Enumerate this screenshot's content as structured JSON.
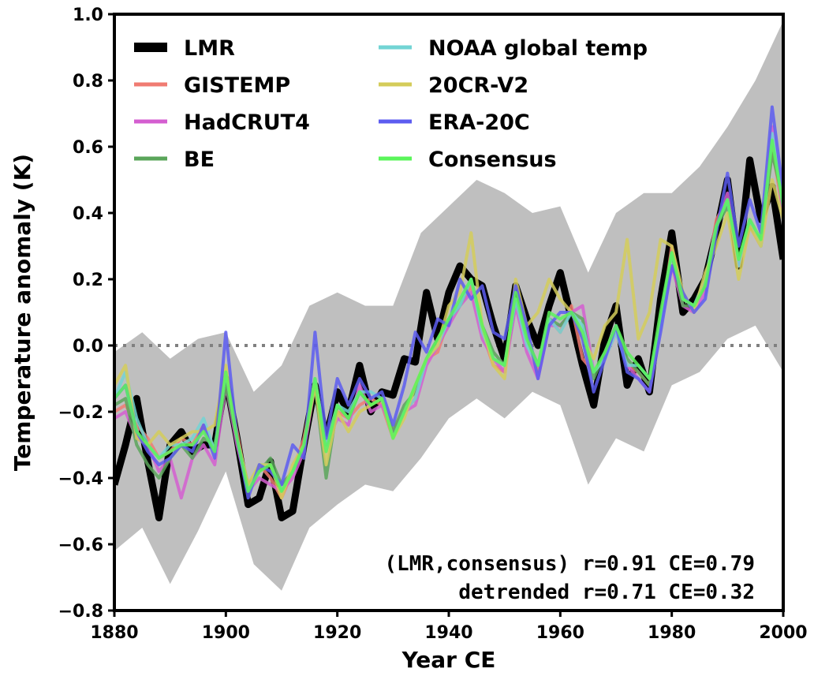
{
  "chart_data": {
    "type": "line",
    "xlabel": "Year CE",
    "ylabel": "Temperature anomaly (K)",
    "xlim": [
      1880,
      2000
    ],
    "ylim": [
      -0.8,
      1.0
    ],
    "x_ticks": [
      "1880",
      "1900",
      "1920",
      "1940",
      "1960",
      "1980",
      "2000"
    ],
    "y_ticks": [
      "−0.8",
      "−0.6",
      "−0.4",
      "−0.2",
      "0.0",
      "0.2",
      "0.4",
      "0.6",
      "0.8",
      "1.0"
    ],
    "zero_line": {
      "y": 0.0,
      "style": "dotted",
      "color": "#808080"
    },
    "legend_position": "upper-left",
    "uncertainty_band": {
      "series": "LMR",
      "color": "#bfbfbf",
      "x": [
        1880,
        1885,
        1890,
        1895,
        1900,
        1905,
        1910,
        1915,
        1920,
        1925,
        1930,
        1935,
        1940,
        1945,
        1950,
        1955,
        1960,
        1965,
        1970,
        1975,
        1980,
        1985,
        1990,
        1995,
        2000
      ],
      "lower": [
        -0.62,
        -0.55,
        -0.72,
        -0.56,
        -0.38,
        -0.66,
        -0.74,
        -0.55,
        -0.48,
        -0.42,
        -0.44,
        -0.34,
        -0.22,
        -0.16,
        -0.22,
        -0.14,
        -0.18,
        -0.42,
        -0.28,
        -0.32,
        -0.12,
        -0.08,
        0.02,
        0.06,
        -0.08
      ],
      "upper": [
        -0.02,
        0.04,
        -0.04,
        0.02,
        0.04,
        -0.14,
        -0.06,
        0.12,
        0.16,
        0.12,
        0.12,
        0.34,
        0.42,
        0.5,
        0.46,
        0.4,
        0.42,
        0.22,
        0.4,
        0.46,
        0.46,
        0.54,
        0.66,
        0.8,
        0.98
      ]
    },
    "x": [
      1880,
      1882,
      1884,
      1886,
      1888,
      1890,
      1892,
      1894,
      1896,
      1898,
      1900,
      1902,
      1904,
      1906,
      1908,
      1910,
      1912,
      1914,
      1916,
      1918,
      1920,
      1922,
      1924,
      1926,
      1928,
      1930,
      1932,
      1934,
      1936,
      1938,
      1940,
      1942,
      1944,
      1946,
      1948,
      1950,
      1952,
      1954,
      1956,
      1958,
      1960,
      1962,
      1964,
      1966,
      1968,
      1970,
      1972,
      1974,
      1976,
      1978,
      1980,
      1982,
      1984,
      1986,
      1988,
      1990,
      1992,
      1994,
      1996,
      1998,
      2000
    ],
    "series": [
      {
        "name": "LMR",
        "color": "#000000",
        "values": [
          -0.42,
          -0.3,
          -0.16,
          -0.35,
          -0.52,
          -0.3,
          -0.26,
          -0.32,
          -0.3,
          -0.3,
          -0.1,
          -0.28,
          -0.48,
          -0.46,
          -0.35,
          -0.52,
          -0.5,
          -0.3,
          -0.12,
          -0.28,
          -0.14,
          -0.2,
          -0.06,
          -0.2,
          -0.14,
          -0.15,
          -0.04,
          -0.05,
          0.16,
          0.02,
          0.16,
          0.24,
          0.2,
          0.18,
          0.06,
          -0.04,
          0.18,
          0.08,
          0.0,
          0.12,
          0.22,
          0.08,
          -0.06,
          -0.18,
          0.02,
          0.12,
          -0.12,
          -0.04,
          -0.14,
          0.14,
          0.34,
          0.1,
          0.14,
          0.2,
          0.34,
          0.5,
          0.24,
          0.56,
          0.38,
          0.48,
          0.26
        ]
      },
      {
        "name": "GISTEMP",
        "color": "#f07b72",
        "values": [
          -0.2,
          -0.18,
          -0.24,
          -0.28,
          -0.34,
          -0.32,
          -0.28,
          -0.3,
          -0.24,
          -0.32,
          -0.08,
          -0.26,
          -0.44,
          -0.36,
          -0.4,
          -0.46,
          -0.38,
          -0.28,
          -0.1,
          -0.3,
          -0.2,
          -0.22,
          -0.18,
          -0.16,
          -0.18,
          -0.28,
          -0.2,
          -0.16,
          -0.04,
          -0.02,
          0.08,
          0.12,
          0.18,
          0.04,
          -0.06,
          -0.08,
          0.14,
          0.02,
          -0.08,
          0.08,
          0.04,
          0.12,
          -0.04,
          -0.08,
          -0.04,
          0.06,
          -0.06,
          -0.08,
          -0.12,
          0.06,
          0.3,
          0.14,
          0.12,
          0.18,
          0.38,
          0.44,
          0.24,
          0.36,
          0.3,
          0.6,
          0.4
        ]
      },
      {
        "name": "HadCRUT4",
        "color": "#d45ed0",
        "values": [
          -0.22,
          -0.2,
          -0.28,
          -0.3,
          -0.38,
          -0.34,
          -0.46,
          -0.34,
          -0.3,
          -0.36,
          -0.12,
          -0.3,
          -0.44,
          -0.4,
          -0.42,
          -0.44,
          -0.4,
          -0.32,
          -0.12,
          -0.3,
          -0.22,
          -0.24,
          -0.12,
          -0.2,
          -0.18,
          -0.26,
          -0.2,
          -0.18,
          -0.06,
          0.0,
          0.06,
          0.12,
          0.16,
          0.02,
          -0.04,
          -0.08,
          0.12,
          -0.02,
          -0.1,
          0.06,
          0.06,
          0.1,
          0.12,
          -0.08,
          -0.04,
          0.04,
          -0.06,
          -0.1,
          -0.14,
          0.06,
          0.24,
          0.12,
          0.1,
          0.16,
          0.36,
          0.46,
          0.24,
          0.38,
          0.3,
          0.66,
          0.4
        ]
      },
      {
        "name": "BE",
        "color": "#5aa55a",
        "values": [
          -0.18,
          -0.16,
          -0.3,
          -0.36,
          -0.4,
          -0.34,
          -0.3,
          -0.34,
          -0.28,
          -0.3,
          -0.12,
          -0.28,
          -0.42,
          -0.38,
          -0.34,
          -0.42,
          -0.38,
          -0.3,
          -0.12,
          -0.4,
          -0.18,
          -0.22,
          -0.14,
          -0.18,
          -0.16,
          -0.26,
          -0.18,
          -0.14,
          -0.04,
          0.02,
          0.08,
          0.12,
          0.2,
          0.06,
          -0.02,
          -0.06,
          0.14,
          0.02,
          -0.06,
          0.08,
          0.06,
          0.1,
          0.08,
          -0.1,
          -0.02,
          0.06,
          -0.04,
          -0.08,
          -0.12,
          0.08,
          0.28,
          0.12,
          0.12,
          0.18,
          0.36,
          0.42,
          0.26,
          0.36,
          0.32,
          0.58,
          0.44
        ]
      },
      {
        "name": "NOAA global temp",
        "color": "#72d4d4",
        "values": [
          -0.16,
          -0.08,
          -0.22,
          -0.3,
          -0.34,
          -0.3,
          -0.3,
          -0.28,
          -0.22,
          -0.32,
          -0.08,
          -0.28,
          -0.44,
          -0.36,
          -0.36,
          -0.44,
          -0.38,
          -0.3,
          -0.1,
          -0.3,
          -0.18,
          -0.2,
          -0.14,
          -0.14,
          -0.16,
          -0.28,
          -0.2,
          -0.16,
          -0.04,
          0.0,
          0.08,
          0.12,
          0.2,
          0.04,
          -0.04,
          -0.06,
          0.14,
          0.0,
          -0.06,
          0.08,
          0.04,
          0.1,
          0.06,
          -0.08,
          -0.04,
          0.04,
          -0.06,
          -0.06,
          -0.1,
          0.06,
          0.28,
          0.14,
          0.12,
          0.2,
          0.36,
          0.44,
          0.24,
          0.38,
          0.3,
          0.64,
          0.42
        ]
      },
      {
        "name": "20CR-V2",
        "color": "#d4cc5a",
        "values": [
          -0.12,
          -0.06,
          -0.28,
          -0.3,
          -0.26,
          -0.3,
          -0.28,
          -0.26,
          -0.26,
          -0.24,
          -0.06,
          -0.28,
          -0.42,
          -0.36,
          -0.36,
          -0.46,
          -0.36,
          -0.3,
          -0.12,
          -0.36,
          -0.2,
          -0.26,
          -0.2,
          -0.18,
          -0.16,
          -0.28,
          -0.22,
          -0.12,
          -0.04,
          0.0,
          0.12,
          0.16,
          0.34,
          0.06,
          -0.06,
          -0.1,
          0.2,
          0.06,
          0.1,
          0.2,
          0.14,
          0.1,
          0.02,
          -0.04,
          0.06,
          0.1,
          0.32,
          0.02,
          0.1,
          0.32,
          0.3,
          0.16,
          0.1,
          0.22,
          0.3,
          0.4,
          0.2,
          0.36,
          0.3,
          0.5,
          0.38
        ]
      },
      {
        "name": "ERA-20C",
        "color": "#5c5cf0",
        "values": [
          -0.16,
          -0.12,
          -0.26,
          -0.32,
          -0.36,
          -0.34,
          -0.3,
          -0.32,
          -0.24,
          -0.34,
          0.04,
          -0.28,
          -0.46,
          -0.36,
          -0.38,
          -0.42,
          -0.3,
          -0.34,
          0.04,
          -0.28,
          -0.1,
          -0.18,
          -0.1,
          -0.16,
          -0.14,
          -0.24,
          -0.12,
          0.04,
          -0.02,
          0.08,
          0.06,
          0.2,
          0.14,
          0.18,
          0.04,
          0.02,
          0.18,
          0.06,
          -0.1,
          0.06,
          0.1,
          0.1,
          0.02,
          -0.14,
          -0.04,
          0.06,
          -0.08,
          -0.1,
          -0.14,
          0.04,
          0.24,
          0.16,
          0.1,
          0.14,
          0.34,
          0.52,
          0.3,
          0.44,
          0.34,
          0.72,
          0.46
        ]
      },
      {
        "name": "Consensus",
        "color": "#5af55a",
        "values": [
          -0.16,
          -0.12,
          -0.26,
          -0.3,
          -0.34,
          -0.32,
          -0.3,
          -0.3,
          -0.26,
          -0.32,
          -0.08,
          -0.28,
          -0.44,
          -0.38,
          -0.36,
          -0.44,
          -0.38,
          -0.3,
          -0.1,
          -0.32,
          -0.18,
          -0.22,
          -0.14,
          -0.18,
          -0.16,
          -0.28,
          -0.2,
          -0.12,
          -0.04,
          0.02,
          0.08,
          0.14,
          0.2,
          0.06,
          -0.04,
          -0.06,
          0.16,
          0.02,
          -0.06,
          0.1,
          0.08,
          0.1,
          0.04,
          -0.08,
          -0.02,
          0.06,
          -0.02,
          -0.06,
          -0.1,
          0.1,
          0.28,
          0.14,
          0.12,
          0.18,
          0.36,
          0.44,
          0.26,
          0.38,
          0.32,
          0.62,
          0.42
        ]
      }
    ],
    "annotations": [
      "(LMR,consensus) r=0.91 CE=0.79",
      "detrended r=0.71 CE=0.32"
    ]
  }
}
